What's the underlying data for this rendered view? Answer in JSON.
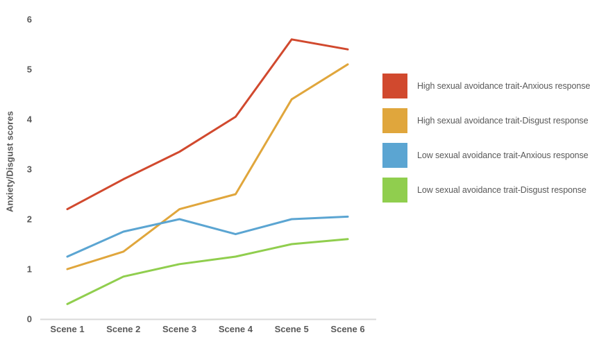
{
  "chart_data": {
    "type": "line",
    "title": "",
    "xlabel": "",
    "ylabel": "Anxiety/Disgust scores",
    "categories": [
      "Scene 1",
      "Scene 2",
      "Scene 3",
      "Scene 4",
      "Scene 5",
      "Scene 6"
    ],
    "yticks": [
      0,
      1,
      2,
      3,
      4,
      5,
      6
    ],
    "ylim": [
      0,
      6
    ],
    "grid": false,
    "legend_position": "right",
    "series": [
      {
        "name": "High sexual avoidance trait-Anxious response",
        "color": "#d1492e",
        "values": [
          2.2,
          2.8,
          3.35,
          4.05,
          5.6,
          5.4
        ]
      },
      {
        "name": "High sexual avoidance trait-Disgust response",
        "color": "#e0a63c",
        "values": [
          1.0,
          1.35,
          2.2,
          2.5,
          4.4,
          5.1
        ]
      },
      {
        "name": "Low sexual avoidance trait-Anxious response",
        "color": "#5ba5d2",
        "values": [
          1.25,
          1.75,
          2.0,
          1.7,
          2.0,
          2.05
        ]
      },
      {
        "name": "Low sexual avoidance trait-Disgust response",
        "color": "#90ce4e",
        "values": [
          0.3,
          0.85,
          1.1,
          1.25,
          1.5,
          1.6
        ]
      }
    ]
  },
  "style": {
    "axis_color": "#d9d9d9",
    "text_color": "#595959",
    "background": "#ffffff"
  }
}
